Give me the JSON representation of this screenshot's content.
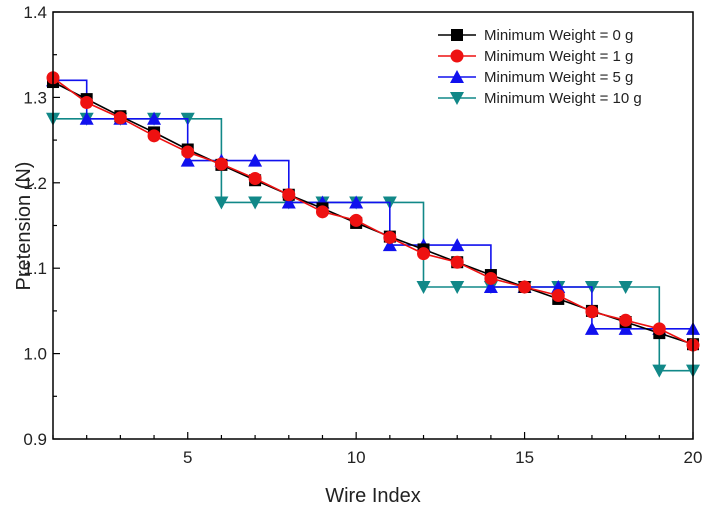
{
  "chart_data": {
    "type": "line",
    "title": "",
    "xlabel": "Wire Index",
    "ylabel": "Pretension (N)",
    "xlim": [
      1,
      20
    ],
    "ylim": [
      0.9,
      1.4
    ],
    "x_ticks": [
      5,
      10,
      15,
      20
    ],
    "y_ticks": [
      0.9,
      1.0,
      1.1,
      1.2,
      1.3,
      1.4
    ],
    "y_tick_labels": [
      "0.9",
      "1.0",
      "1.1",
      "1.2",
      "1.3",
      "1.4"
    ],
    "legend_position": "top-right",
    "grid": false,
    "x": [
      1,
      2,
      3,
      4,
      5,
      6,
      7,
      8,
      9,
      10,
      11,
      12,
      13,
      14,
      15,
      16,
      17,
      18,
      19,
      20
    ],
    "series": [
      {
        "name": "Minimum Weight = 0 g",
        "color": "#000000",
        "marker": "square",
        "step": false,
        "values": [
          1.318,
          1.298,
          1.278,
          1.259,
          1.239,
          1.221,
          1.203,
          1.186,
          1.17,
          1.153,
          1.137,
          1.122,
          1.107,
          1.092,
          1.078,
          1.064,
          1.05,
          1.037,
          1.024,
          1.011
        ]
      },
      {
        "name": "Minimum Weight = 1 g",
        "color": "#ee1111",
        "marker": "circle",
        "step": false,
        "values": [
          1.323,
          1.294,
          1.276,
          1.255,
          1.236,
          1.222,
          1.205,
          1.186,
          1.166,
          1.156,
          1.136,
          1.117,
          1.107,
          1.088,
          1.078,
          1.068,
          1.049,
          1.039,
          1.029,
          1.01
        ]
      },
      {
        "name": "Minimum Weight = 5 g",
        "color": "#1111ee",
        "marker": "triangle-up",
        "step": true,
        "values": [
          1.32,
          1.275,
          1.275,
          1.275,
          1.226,
          1.226,
          1.226,
          1.177,
          1.177,
          1.177,
          1.127,
          1.127,
          1.127,
          1.078,
          1.078,
          1.078,
          1.029,
          1.029,
          1.029,
          1.029
        ]
      },
      {
        "name": "Minimum Weight = 10 g",
        "color": "#118888",
        "marker": "triangle-down",
        "step": true,
        "values": [
          1.275,
          1.275,
          1.275,
          1.275,
          1.275,
          1.177,
          1.177,
          1.177,
          1.177,
          1.177,
          1.177,
          1.078,
          1.078,
          1.078,
          1.078,
          1.078,
          1.078,
          1.078,
          0.98,
          0.98
        ]
      }
    ]
  }
}
